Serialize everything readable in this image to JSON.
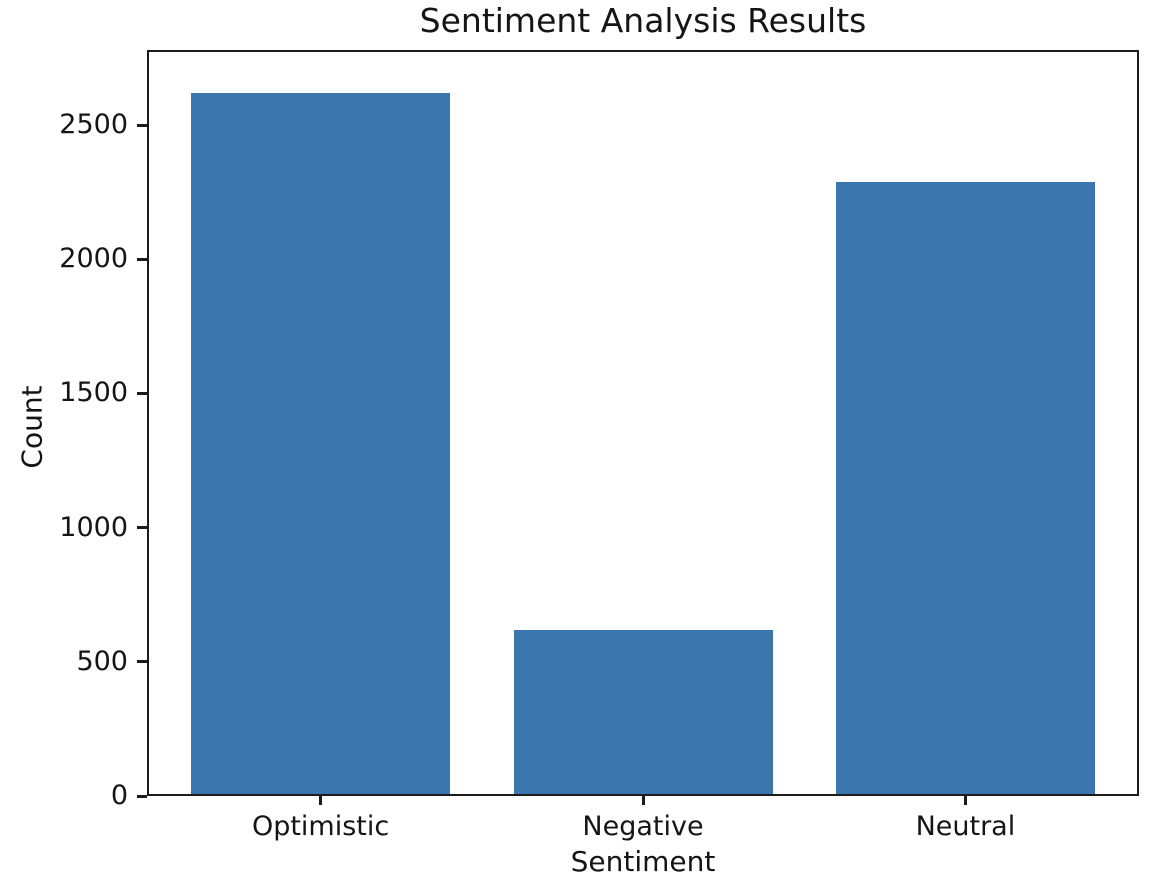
{
  "chart_data": {
    "type": "bar",
    "title": "Sentiment Analysis Results",
    "xlabel": "Sentiment",
    "ylabel": "Count",
    "categories": [
      "Optimistic",
      "Negative",
      "Neutral"
    ],
    "values": [
      2620,
      620,
      2290
    ],
    "yticks": [
      0,
      500,
      1000,
      1500,
      2000,
      2500
    ],
    "ylim": [
      0,
      2780
    ],
    "bar_color": "#3b76af",
    "axis_color": "#1c1c1c",
    "text_color": "#151515",
    "background_color": "#ffffff",
    "grid": false,
    "legend": false
  }
}
